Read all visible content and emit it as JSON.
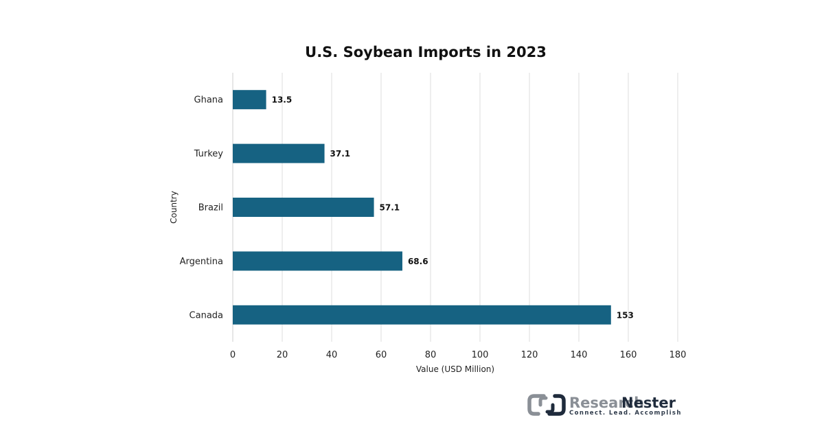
{
  "chart_data": {
    "type": "bar",
    "orientation": "horizontal",
    "title": "U.S. Soybean Imports in 2023",
    "xlabel": "Value (USD Million)",
    "ylabel": "Country",
    "categories": [
      "Ghana",
      "Turkey",
      "Brazil",
      "Argentina",
      "Canada"
    ],
    "values": [
      13.5,
      37.1,
      57.1,
      68.6,
      153
    ],
    "value_labels": [
      "13.5",
      "37.1",
      "57.1",
      "68.6",
      "153"
    ],
    "xlim": [
      0,
      180
    ],
    "xticks": [
      "0",
      "20",
      "40",
      "60",
      "80",
      "100",
      "120",
      "140",
      "160",
      "180"
    ],
    "grid": "vertical",
    "legend": "none",
    "bar_color": "#166282"
  },
  "logo": {
    "word1": "Research",
    "word2": "Nester",
    "tagline": "Connect. Lead. Accomplish",
    "color_gray": "#8a8f96",
    "color_dark": "#1f2b3c"
  }
}
